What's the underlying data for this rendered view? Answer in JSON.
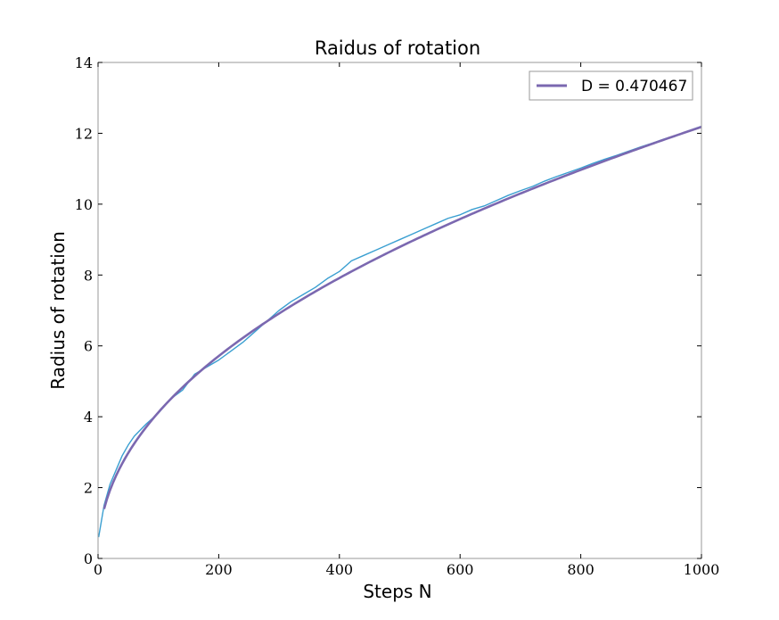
{
  "chart_data": {
    "type": "line",
    "title": "Raidus of rotation",
    "xlabel": "Steps N",
    "ylabel": "Radius of rotation",
    "xlim": [
      0,
      1000
    ],
    "ylim": [
      0,
      14
    ],
    "x_ticks": [
      "0",
      "200",
      "400",
      "600",
      "800",
      "1000"
    ],
    "y_ticks": [
      "0",
      "2",
      "4",
      "6",
      "8",
      "10",
      "12",
      "14"
    ],
    "grid": false,
    "legend": {
      "placement": "top-right",
      "entries": [
        "D = 0.470467"
      ]
    },
    "series": [
      {
        "kind": "simulation",
        "color": "#3a9fd1",
        "x": [
          1,
          5,
          10,
          20,
          30,
          40,
          50,
          60,
          80,
          100,
          120,
          140,
          160,
          180,
          200,
          220,
          240,
          260,
          280,
          300,
          320,
          340,
          360,
          380,
          400,
          420,
          440,
          460,
          480,
          500,
          520,
          540,
          560,
          580,
          600,
          620,
          640,
          660,
          680,
          700,
          720,
          740,
          760,
          780,
          800,
          820,
          840,
          860,
          880,
          900,
          920,
          940,
          960,
          980,
          1000
        ],
        "y": [
          0.6,
          1.0,
          1.5,
          2.1,
          2.5,
          2.9,
          3.2,
          3.45,
          3.8,
          4.1,
          4.5,
          4.75,
          5.2,
          5.4,
          5.6,
          5.85,
          6.1,
          6.4,
          6.7,
          7.0,
          7.25,
          7.45,
          7.65,
          7.9,
          8.1,
          8.4,
          8.55,
          8.7,
          8.85,
          9.0,
          9.15,
          9.3,
          9.45,
          9.6,
          9.7,
          9.85,
          9.95,
          10.1,
          10.25,
          10.38,
          10.5,
          10.65,
          10.78,
          10.9,
          11.02,
          11.15,
          11.27,
          11.38,
          11.5,
          11.62,
          11.73,
          11.85,
          11.95,
          12.08,
          12.2
        ]
      },
      {
        "kind": "fit",
        "color": "#7b68b0",
        "function": "power",
        "coefficient": 0.4724,
        "exponent": 0.470467,
        "x_start": 10,
        "x_end": 1000
      }
    ]
  },
  "colors": {
    "frame": "#9a9a9a",
    "simulation": "#3a9fd1",
    "fit": "#7b68b0"
  }
}
